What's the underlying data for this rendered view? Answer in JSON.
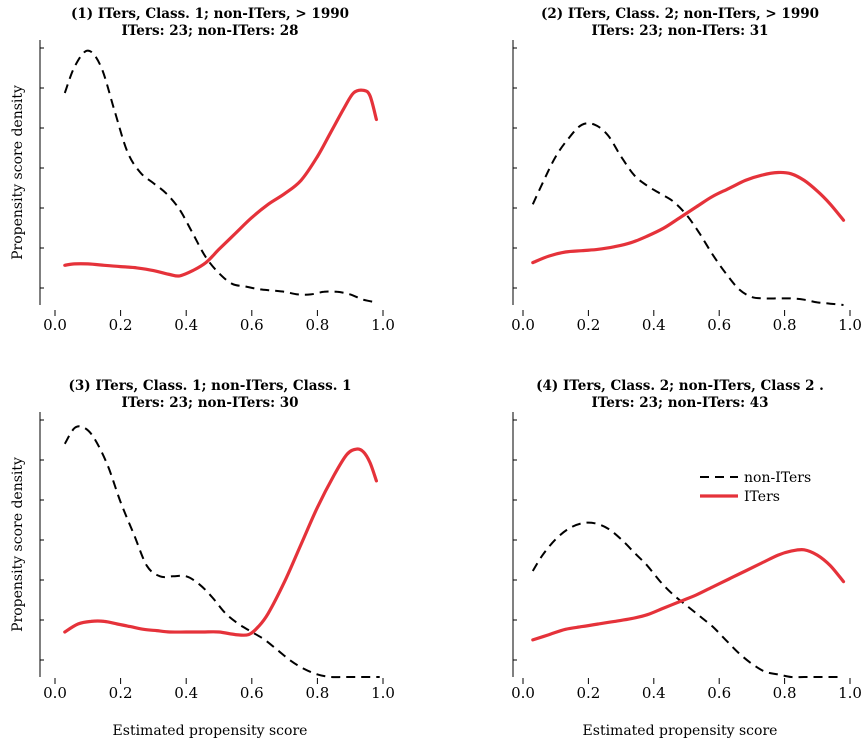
{
  "figure": {
    "xlabel": "Estimated propensity score",
    "ylabel": "Propensity score density"
  },
  "legend": {
    "items": [
      "non-ITers",
      "ITers"
    ],
    "placement": "right, panel 4"
  },
  "chart_data": [
    {
      "type": "line",
      "title": "(1) ITers, Class. 1; non-ITers, > 1990",
      "subtitle": "ITers: 23; non-ITers: 28",
      "xlabel": "",
      "ylabel": "Propensity score density",
      "xlim": [
        0.0,
        1.0
      ],
      "ylim": [
        0,
        1
      ],
      "xticks": [
        "0.0",
        "0.2",
        "0.4",
        "0.6",
        "0.8",
        "1.0"
      ],
      "series": [
        {
          "name": "non-ITers",
          "color": "#000000",
          "style": "dashed",
          "x": [
            0.03,
            0.06,
            0.1,
            0.14,
            0.18,
            0.22,
            0.26,
            0.3,
            0.34,
            0.38,
            0.42,
            0.46,
            0.5,
            0.54,
            0.58,
            0.62,
            0.66,
            0.7,
            0.74,
            0.78,
            0.82,
            0.86,
            0.9,
            0.94,
            0.98
          ],
          "y": [
            0.8,
            0.9,
            0.96,
            0.9,
            0.74,
            0.58,
            0.5,
            0.46,
            0.42,
            0.36,
            0.27,
            0.18,
            0.12,
            0.08,
            0.07,
            0.06,
            0.055,
            0.05,
            0.04,
            0.04,
            0.05,
            0.05,
            0.04,
            0.02,
            0.01
          ]
        },
        {
          "name": "ITers",
          "color": "#e5323a",
          "style": "solid",
          "x": [
            0.03,
            0.06,
            0.1,
            0.15,
            0.2,
            0.25,
            0.3,
            0.35,
            0.38,
            0.42,
            0.46,
            0.5,
            0.55,
            0.6,
            0.65,
            0.7,
            0.75,
            0.8,
            0.84,
            0.88,
            0.91,
            0.94,
            0.96,
            0.98
          ],
          "y": [
            0.15,
            0.155,
            0.155,
            0.15,
            0.145,
            0.14,
            0.13,
            0.115,
            0.11,
            0.13,
            0.16,
            0.21,
            0.27,
            0.33,
            0.38,
            0.42,
            0.47,
            0.56,
            0.65,
            0.74,
            0.8,
            0.81,
            0.79,
            0.7
          ]
        }
      ]
    },
    {
      "type": "line",
      "title": "(2) ITers, Class. 2; non-ITers, > 1990",
      "subtitle": "ITers: 23; non-ITers: 31",
      "xlabel": "",
      "ylabel": "",
      "xlim": [
        0.0,
        1.0
      ],
      "ylim": [
        0,
        1
      ],
      "xticks": [
        "0.0",
        "0.2",
        "0.4",
        "0.6",
        "0.8",
        "1.0"
      ],
      "series": [
        {
          "name": "non-ITers",
          "color": "#000000",
          "style": "dashed",
          "x": [
            0.03,
            0.06,
            0.1,
            0.14,
            0.18,
            0.22,
            0.26,
            0.3,
            0.34,
            0.38,
            0.42,
            0.46,
            0.5,
            0.54,
            0.58,
            0.62,
            0.66,
            0.7,
            0.74,
            0.78,
            0.82,
            0.86,
            0.9,
            0.94,
            0.98
          ],
          "y": [
            0.38,
            0.46,
            0.56,
            0.63,
            0.68,
            0.68,
            0.64,
            0.56,
            0.49,
            0.45,
            0.42,
            0.39,
            0.34,
            0.27,
            0.19,
            0.12,
            0.06,
            0.03,
            0.025,
            0.025,
            0.025,
            0.02,
            0.01,
            0.005,
            0.0
          ]
        },
        {
          "name": "ITers",
          "color": "#e5323a",
          "style": "solid",
          "x": [
            0.03,
            0.08,
            0.13,
            0.18,
            0.23,
            0.28,
            0.33,
            0.38,
            0.43,
            0.48,
            0.53,
            0.58,
            0.63,
            0.68,
            0.73,
            0.78,
            0.82,
            0.86,
            0.9,
            0.94,
            0.98
          ],
          "y": [
            0.16,
            0.185,
            0.2,
            0.205,
            0.21,
            0.22,
            0.235,
            0.26,
            0.29,
            0.33,
            0.37,
            0.41,
            0.44,
            0.47,
            0.49,
            0.5,
            0.495,
            0.47,
            0.43,
            0.38,
            0.32
          ]
        }
      ]
    },
    {
      "type": "line",
      "title": "(3) ITers, Class. 1; non-ITers, Class. 1",
      "subtitle": "ITers: 23; non-ITers: 30",
      "xlabel": "Estimated propensity score",
      "ylabel": "Propensity score density",
      "xlim": [
        0.0,
        1.0
      ],
      "ylim": [
        0,
        1
      ],
      "xticks": [
        "0.0",
        "0.2",
        "0.4",
        "0.6",
        "0.8",
        "1.0"
      ],
      "series": [
        {
          "name": "non-ITers",
          "color": "#000000",
          "style": "dashed",
          "x": [
            0.03,
            0.06,
            0.09,
            0.12,
            0.16,
            0.2,
            0.24,
            0.28,
            0.32,
            0.36,
            0.4,
            0.44,
            0.48,
            0.52,
            0.56,
            0.6,
            0.64,
            0.68,
            0.72,
            0.76,
            0.8,
            0.84,
            0.88,
            0.92,
            0.96,
            0.99
          ],
          "y": [
            0.88,
            0.94,
            0.94,
            0.9,
            0.8,
            0.66,
            0.54,
            0.42,
            0.38,
            0.38,
            0.38,
            0.35,
            0.3,
            0.24,
            0.2,
            0.17,
            0.14,
            0.1,
            0.06,
            0.03,
            0.01,
            0.0,
            0.0,
            0.0,
            0.0,
            0.0
          ]
        },
        {
          "name": "ITers",
          "color": "#e5323a",
          "style": "solid",
          "x": [
            0.03,
            0.07,
            0.11,
            0.15,
            0.19,
            0.23,
            0.27,
            0.31,
            0.35,
            0.4,
            0.45,
            0.5,
            0.55,
            0.59,
            0.62,
            0.65,
            0.7,
            0.75,
            0.8,
            0.85,
            0.89,
            0.92,
            0.94,
            0.96,
            0.98
          ],
          "y": [
            0.17,
            0.2,
            0.21,
            0.21,
            0.2,
            0.19,
            0.18,
            0.175,
            0.17,
            0.17,
            0.17,
            0.17,
            0.16,
            0.16,
            0.19,
            0.24,
            0.36,
            0.5,
            0.64,
            0.76,
            0.84,
            0.86,
            0.85,
            0.81,
            0.74
          ]
        }
      ]
    },
    {
      "type": "line",
      "title": "(4) ITers, Class. 2; non-ITers, Class 2 .",
      "subtitle": "ITers: 23; non-ITers: 43",
      "xlabel": "Estimated propensity score",
      "ylabel": "",
      "xlim": [
        0.0,
        1.0
      ],
      "ylim": [
        0,
        1
      ],
      "xticks": [
        "0.0",
        "0.2",
        "0.4",
        "0.6",
        "0.8",
        "1.0"
      ],
      "series": [
        {
          "name": "non-ITers",
          "color": "#000000",
          "style": "dashed",
          "x": [
            0.03,
            0.06,
            0.1,
            0.14,
            0.18,
            0.22,
            0.26,
            0.3,
            0.34,
            0.38,
            0.42,
            0.46,
            0.5,
            0.54,
            0.58,
            0.62,
            0.66,
            0.7,
            0.74,
            0.78,
            0.82,
            0.86,
            0.9,
            0.94,
            0.98
          ],
          "y": [
            0.4,
            0.46,
            0.52,
            0.56,
            0.58,
            0.58,
            0.56,
            0.52,
            0.47,
            0.42,
            0.36,
            0.31,
            0.27,
            0.23,
            0.19,
            0.14,
            0.09,
            0.05,
            0.02,
            0.01,
            0.0,
            0.0,
            0.0,
            0.0,
            0.0
          ]
        },
        {
          "name": "ITers",
          "color": "#e5323a",
          "style": "solid",
          "x": [
            0.03,
            0.08,
            0.13,
            0.18,
            0.23,
            0.28,
            0.33,
            0.38,
            0.43,
            0.48,
            0.53,
            0.58,
            0.63,
            0.68,
            0.73,
            0.78,
            0.82,
            0.86,
            0.9,
            0.94,
            0.98
          ],
          "y": [
            0.14,
            0.16,
            0.18,
            0.19,
            0.2,
            0.21,
            0.22,
            0.235,
            0.26,
            0.285,
            0.31,
            0.34,
            0.37,
            0.4,
            0.43,
            0.46,
            0.475,
            0.48,
            0.46,
            0.42,
            0.36
          ]
        }
      ]
    }
  ]
}
